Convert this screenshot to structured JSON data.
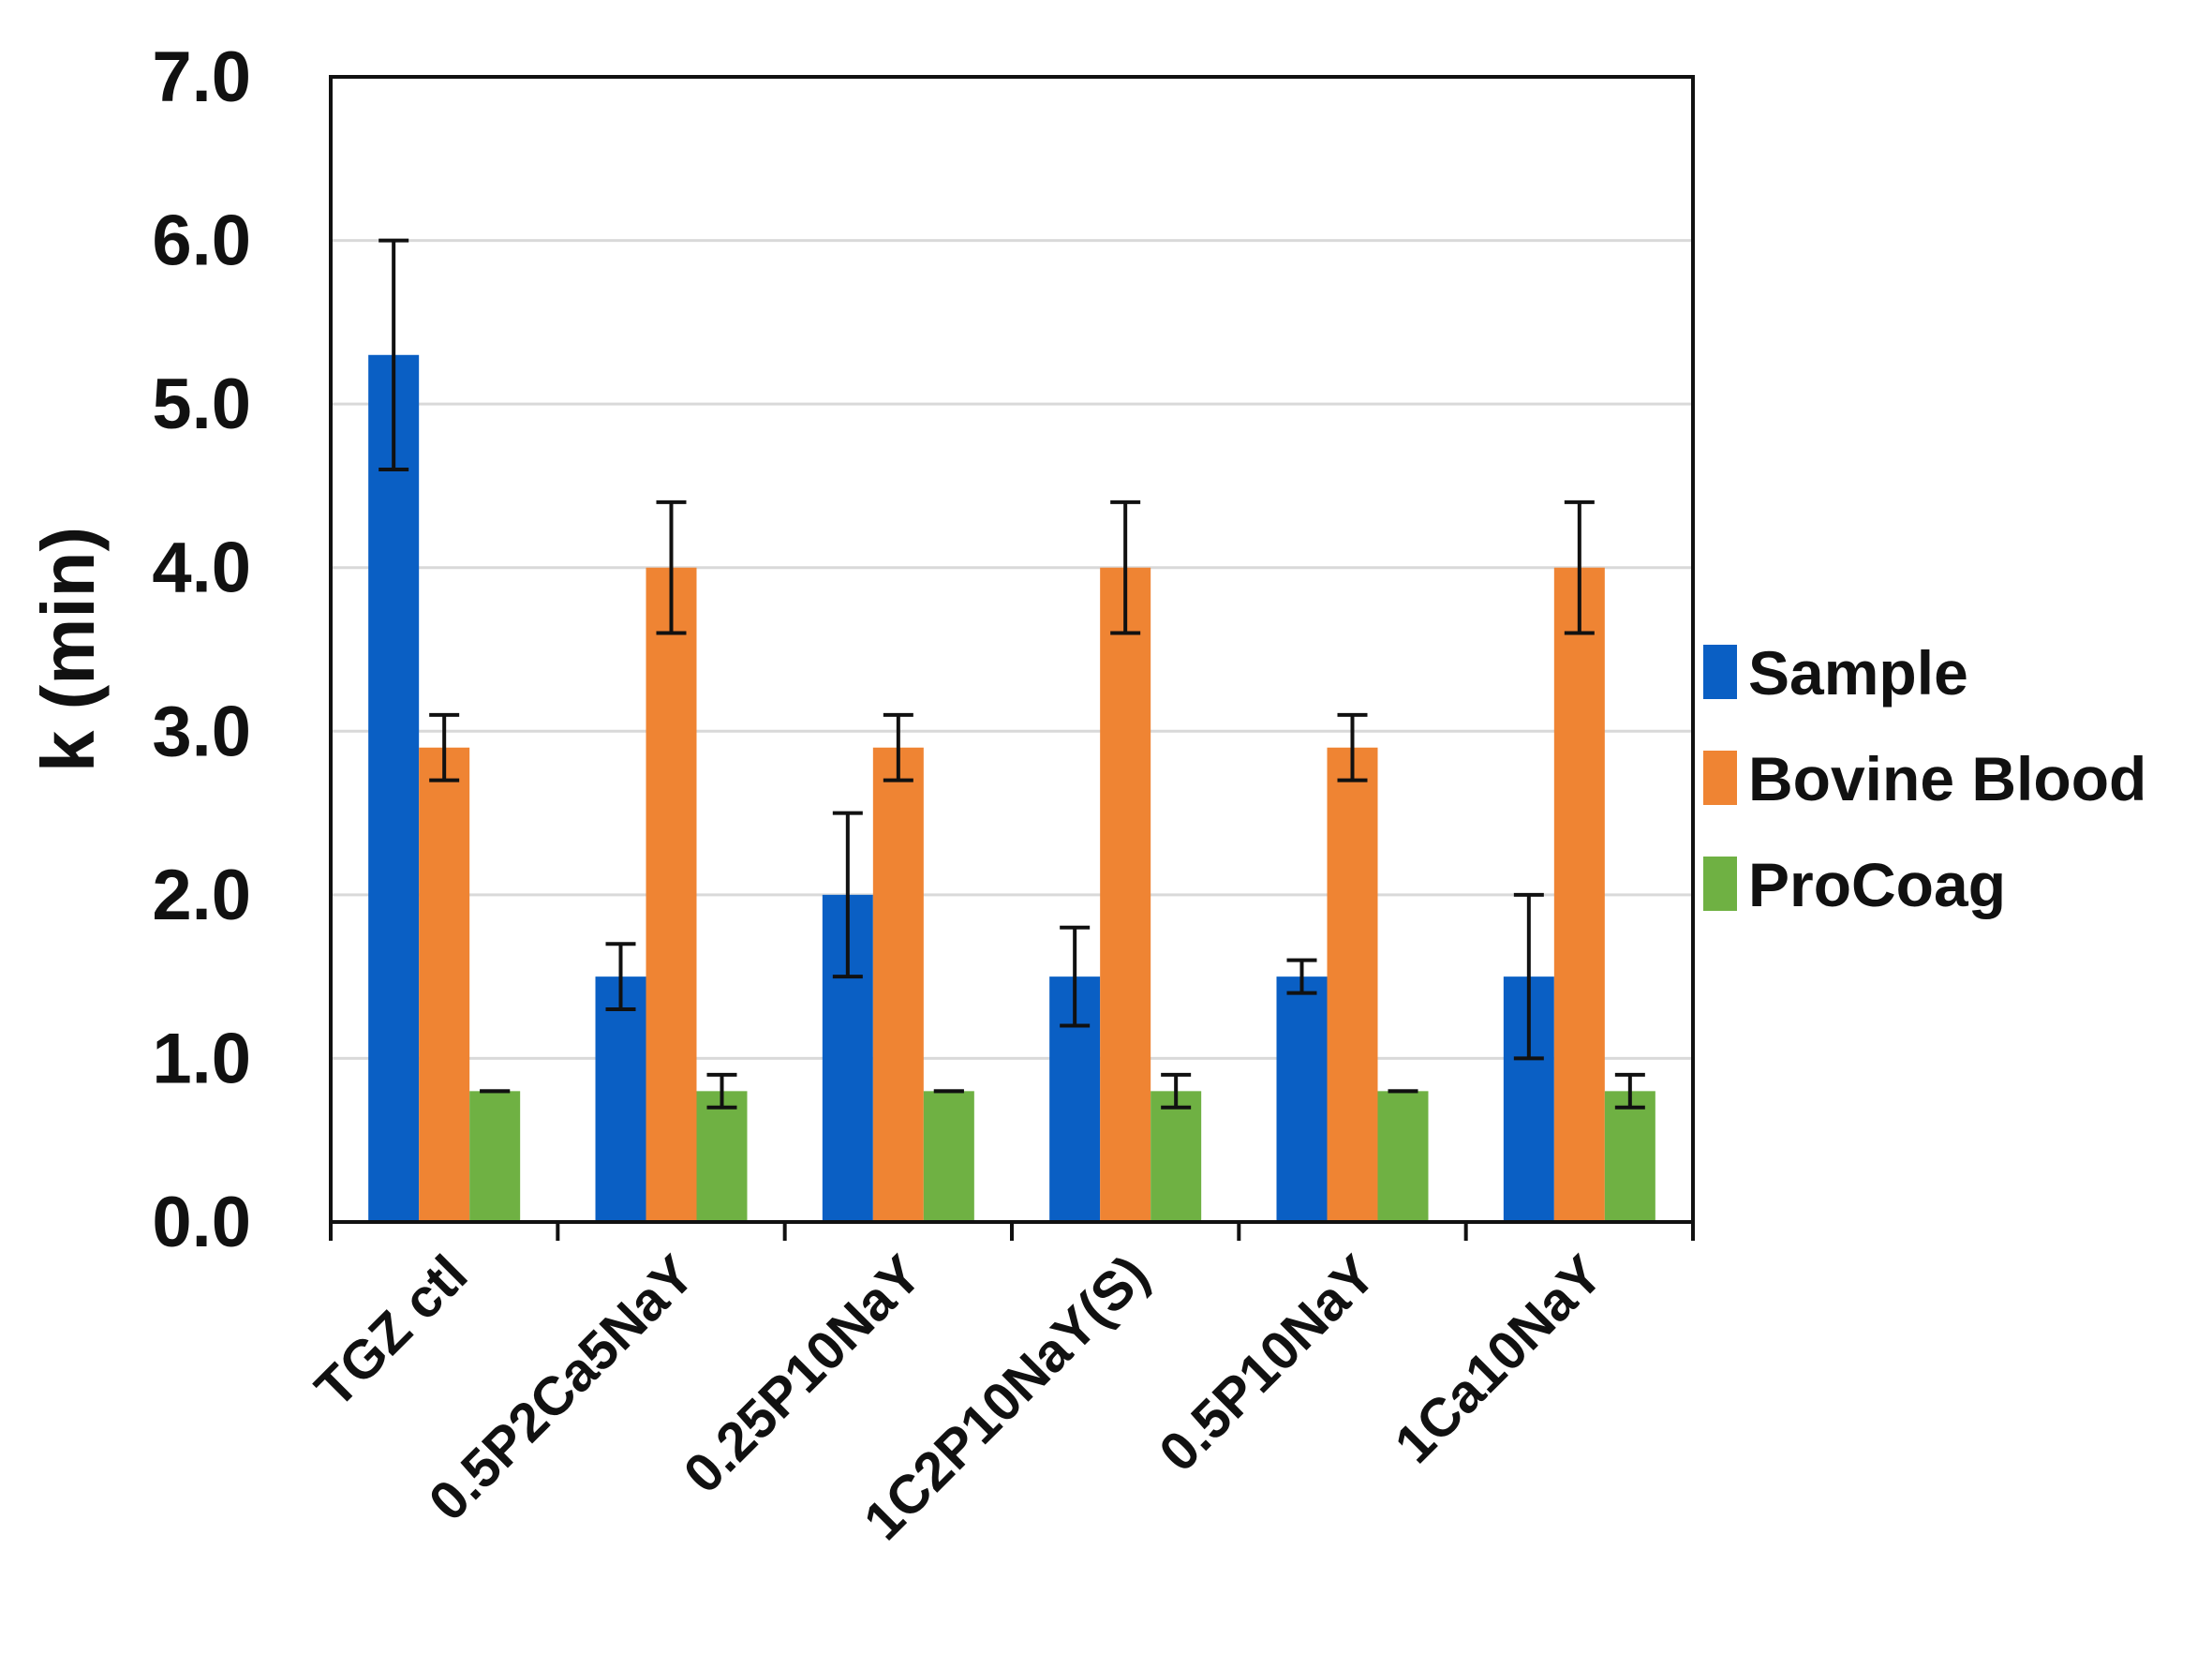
{
  "chart_data": {
    "type": "bar",
    "title": "",
    "xlabel": "",
    "ylabel": "k (min)",
    "ylim": [
      0,
      7
    ],
    "yticks": [
      "0.0",
      "1.0",
      "2.0",
      "3.0",
      "4.0",
      "5.0",
      "6.0",
      "7.0"
    ],
    "grid": "horizontal",
    "legend_position": "right",
    "categories": [
      "TGZ ctl",
      "0.5P2Ca5NaY",
      "0.25P10NaY",
      "1C2P10NaY(S)",
      "0.5P10NaY",
      "1Ca10NaY"
    ],
    "series": [
      {
        "name": "Sample",
        "color": "#0a5fc4",
        "values": [
          5.3,
          1.5,
          2.0,
          1.5,
          1.5,
          1.5
        ],
        "errors": [
          0.7,
          0.2,
          0.5,
          0.3,
          0.1,
          0.5
        ]
      },
      {
        "name": "Bovine Blood",
        "color": "#ef8433",
        "values": [
          2.9,
          4.0,
          2.9,
          4.0,
          2.9,
          4.0
        ],
        "errors": [
          0.2,
          0.4,
          0.2,
          0.4,
          0.2,
          0.4
        ]
      },
      {
        "name": "ProCoag",
        "color": "#6fb143",
        "values": [
          0.8,
          0.8,
          0.8,
          0.8,
          0.8,
          0.8
        ],
        "errors": [
          0.0,
          0.1,
          0.0,
          0.1,
          0.0,
          0.1
        ]
      }
    ]
  }
}
